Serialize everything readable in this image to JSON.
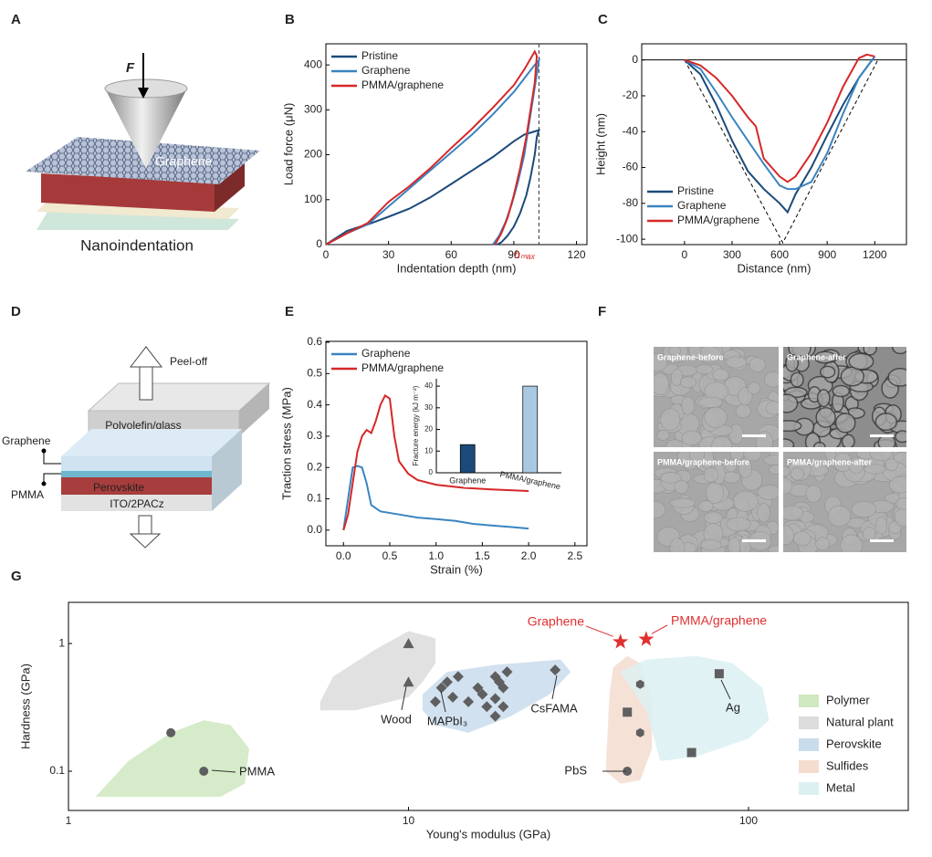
{
  "panel_a": {
    "panel": "A",
    "force": "F",
    "graphene": "Graphene",
    "caption": "Nanoindentation"
  },
  "panel_d": {
    "panel": "D",
    "peel": "Peel-off",
    "top": "Polyolefin/glass",
    "graphene": "Graphene",
    "pmma": "PMMA",
    "perovskite": "Perovskite",
    "ito": "ITO/2PACz"
  },
  "panel_f": {
    "panel": "F",
    "images": [
      "Graphene-before",
      "Graphene-after",
      "PMMA/graphene-before",
      "PMMA/graphene-after"
    ]
  },
  "chart_data": [
    {
      "type": "line",
      "panel": "B",
      "xlabel": "Indentation depth (nm)",
      "ylabel": "Load force (μN)",
      "xlim": [
        0,
        125
      ],
      "xticks": [
        0,
        30,
        60,
        90,
        120
      ],
      "ylim": [
        0,
        447
      ],
      "yticks": [
        0,
        100,
        200,
        300,
        400
      ],
      "vline": 102,
      "annotation": "hₘₐₓ",
      "annotation_color": "#d62728",
      "legend": "upper left",
      "series": [
        {
          "name": "Pristine",
          "color": "#1b4a7a",
          "x": [
            0,
            5,
            10,
            15,
            20,
            30,
            40,
            50,
            60,
            70,
            80,
            90,
            95,
            100,
            102,
            101,
            100,
            98,
            96,
            93,
            90,
            87,
            84,
            82
          ],
          "values": [
            0,
            15,
            30,
            38,
            45,
            62,
            80,
            105,
            135,
            165,
            195,
            230,
            245,
            252,
            255,
            240,
            200,
            150,
            110,
            70,
            40,
            20,
            5,
            0
          ]
        },
        {
          "name": "Graphene",
          "color": "#3a84c0",
          "x": [
            0,
            10,
            20,
            30,
            40,
            50,
            60,
            70,
            80,
            90,
            95,
            100,
            102,
            101,
            99,
            97,
            95,
            92,
            89,
            86,
            83,
            80
          ],
          "values": [
            0,
            25,
            45,
            85,
            125,
            165,
            205,
            245,
            290,
            340,
            370,
            400,
            410,
            380,
            320,
            260,
            200,
            140,
            90,
            50,
            20,
            0
          ]
        },
        {
          "name": "PMMA/graphene",
          "color": "#d62728",
          "x": [
            0,
            10,
            20,
            30,
            40,
            50,
            60,
            70,
            80,
            90,
            95,
            100,
            101,
            100,
            98,
            96,
            93,
            90,
            87,
            84,
            81
          ],
          "values": [
            0,
            25,
            48,
            95,
            130,
            170,
            215,
            258,
            305,
            355,
            390,
            430,
            420,
            360,
            300,
            240,
            170,
            110,
            60,
            25,
            0
          ]
        }
      ]
    },
    {
      "type": "line",
      "panel": "C",
      "xlabel": "Distance (nm)",
      "ylabel": "Height (nm)",
      "xlim": [
        -270,
        1400
      ],
      "xticks": [
        0,
        300,
        600,
        900,
        1200
      ],
      "ylim": [
        -103,
        9
      ],
      "yticks": [
        0,
        -20,
        -40,
        -60,
        -80,
        -100
      ],
      "hline": 0,
      "guide": {
        "x": [
          0,
          620,
          1220
        ],
        "values": [
          0,
          -102,
          0
        ]
      },
      "legend": "lower left",
      "series": [
        {
          "name": "Pristine",
          "color": "#1b4a7a",
          "x": [
            0,
            100,
            200,
            300,
            400,
            500,
            600,
            650,
            700,
            800,
            900,
            1000,
            1100,
            1200
          ],
          "values": [
            0,
            -8,
            -25,
            -45,
            -62,
            -72,
            -80,
            -85,
            -75,
            -60,
            -42,
            -25,
            -10,
            2
          ]
        },
        {
          "name": "Graphene",
          "color": "#3a84c0",
          "x": [
            0,
            100,
            200,
            300,
            400,
            500,
            600,
            650,
            700,
            800,
            900,
            1000,
            1100,
            1200
          ],
          "values": [
            0,
            -5,
            -18,
            -32,
            -45,
            -58,
            -70,
            -72,
            -72,
            -68,
            -52,
            -30,
            -10,
            2
          ]
        },
        {
          "name": "PMMA/graphene",
          "color": "#d62728",
          "x": [
            0,
            100,
            200,
            300,
            400,
            450,
            500,
            600,
            650,
            700,
            800,
            900,
            1000,
            1100,
            1150,
            1200
          ],
          "values": [
            0,
            -3,
            -10,
            -20,
            -32,
            -37,
            -55,
            -65,
            -68,
            -65,
            -52,
            -35,
            -15,
            1,
            3,
            2
          ]
        }
      ]
    },
    {
      "type": "line",
      "panel": "E",
      "xlabel": "Strain (%)",
      "ylabel": "Traction stress (MPa)",
      "xlim": [
        -0.19,
        2.63
      ],
      "xticks": [
        {
          "value": 0,
          "label": "0.0"
        },
        0.5,
        {
          "value": 1,
          "label": "1.0"
        },
        1.5,
        {
          "value": 2,
          "label": "2.0"
        },
        2.5
      ],
      "ylim": [
        -0.05,
        0.603
      ],
      "yticks": [
        {
          "value": 0,
          "label": "0.0"
        },
        0.1,
        0.2,
        0.3,
        0.4,
        0.5,
        0.6
      ],
      "legend": "upper left",
      "series": [
        {
          "name": "Graphene",
          "color": "#3a84c0",
          "x": [
            0,
            0.05,
            0.1,
            0.15,
            0.2,
            0.25,
            0.3,
            0.4,
            0.6,
            0.8,
            1.0,
            1.2,
            1.4,
            1.6,
            1.8,
            2.0
          ],
          "values": [
            0,
            0.1,
            0.2,
            0.205,
            0.2,
            0.15,
            0.08,
            0.06,
            0.05,
            0.04,
            0.035,
            0.03,
            0.02,
            0.015,
            0.01,
            0.005
          ]
        },
        {
          "name": "PMMA/graphene",
          "color": "#d62728",
          "x": [
            0,
            0.05,
            0.1,
            0.15,
            0.2,
            0.25,
            0.3,
            0.35,
            0.4,
            0.45,
            0.5,
            0.55,
            0.6,
            0.7,
            0.8,
            1.0,
            1.3,
            1.6,
            2.0
          ],
          "values": [
            0,
            0.05,
            0.15,
            0.25,
            0.3,
            0.32,
            0.31,
            0.35,
            0.4,
            0.43,
            0.42,
            0.3,
            0.22,
            0.18,
            0.16,
            0.145,
            0.135,
            0.13,
            0.125
          ]
        }
      ]
    },
    {
      "type": "bar",
      "ylabel": "Fracture energy (kJ m⁻²)",
      "categories": [
        "Graphene",
        "PMMA/graphene"
      ],
      "values": [
        13,
        40
      ],
      "colors": [
        "#1b4a7a",
        "#a9c9e2"
      ],
      "ylim": [
        0,
        43.4
      ],
      "yticks": [
        0,
        10,
        20,
        30,
        40
      ]
    },
    {
      "type": "scatter",
      "panel": "G",
      "xlabel": "Young's modulus (GPa)",
      "ylabel": "Hardness (GPa)",
      "xlog": true,
      "ylog": true,
      "xlim": [
        1,
        295
      ],
      "xticks": [
        1,
        10,
        100
      ],
      "ylim": [
        0.0493,
        2.1
      ],
      "yticks": [
        0.1,
        1
      ],
      "legend": "right",
      "series": [
        {
          "name": "Polymer",
          "color": "#cfe8bf",
          "marker": "circle",
          "x": [
            2,
            2.5
          ],
          "values": [
            0.2,
            0.1
          ],
          "region_x": [
            1.2,
            1.5,
            2,
            2.5,
            3,
            3.4,
            3.3,
            2.8
          ],
          "region_y": [
            0.063,
            0.12,
            0.2,
            0.25,
            0.23,
            0.15,
            0.08,
            0.063
          ]
        },
        {
          "name": "Natural plant",
          "color": "#dcdcdc",
          "marker": "triangle",
          "x": [
            10,
            10
          ],
          "values": [
            1.0,
            0.5
          ],
          "region_x": [
            5.5,
            6,
            8,
            10,
            12,
            12,
            11,
            10,
            7,
            5.5
          ],
          "region_y": [
            0.35,
            0.55,
            0.9,
            1.25,
            1.1,
            0.7,
            0.5,
            0.38,
            0.3,
            0.3
          ]
        },
        {
          "name": "Perovskite",
          "color": "#c9dcec",
          "marker": "diamond",
          "x": [
            12,
            12.5,
            13,
            14,
            13.5,
            15,
            16,
            16.5,
            17,
            18,
            18.5,
            19,
            19.5,
            18,
            19,
            18,
            27
          ],
          "values": [
            0.35,
            0.45,
            0.5,
            0.55,
            0.38,
            0.35,
            0.45,
            0.4,
            0.32,
            0.55,
            0.5,
            0.45,
            0.6,
            0.37,
            0.32,
            0.27,
            0.62
          ],
          "region_x": [
            11,
            13,
            18,
            28,
            30,
            26,
            20,
            15,
            12,
            11
          ],
          "region_y": [
            0.4,
            0.6,
            0.68,
            0.75,
            0.6,
            0.4,
            0.27,
            0.2,
            0.23,
            0.3
          ]
        },
        {
          "name": "Sulfides",
          "color": "#f4dccf",
          "marker": [
            "circle",
            "hexagon",
            "hexagon"
          ],
          "x": [
            44,
            48,
            48
          ],
          "values": [
            0.1,
            0.48,
            0.2
          ],
          "region_x": [
            38,
            39,
            40,
            44,
            48,
            52,
            52,
            48,
            42
          ],
          "region_y": [
            0.1,
            0.4,
            0.65,
            0.8,
            0.7,
            0.35,
            0.15,
            0.085,
            0.08
          ]
        },
        {
          "name": "Metal",
          "color": "#dcf0f2",
          "marker": "square",
          "x": [
            44,
            68,
            82
          ],
          "values": [
            0.29,
            0.14,
            0.58
          ],
          "region_x": [
            42,
            50,
            70,
            90,
            110,
            115,
            100,
            70,
            55,
            50
          ],
          "region_y": [
            0.6,
            0.75,
            0.8,
            0.7,
            0.45,
            0.25,
            0.18,
            0.13,
            0.12,
            0.3
          ]
        }
      ],
      "highlights": {
        "color": "#e03030",
        "names": [
          "Graphene",
          "PMMA/graphene"
        ],
        "x": [
          42,
          50
        ],
        "values": [
          1.03,
          1.08
        ]
      },
      "point_labels": [
        "PMMA",
        "Wood",
        "MAPbI₃",
        "CsFAMA",
        "PbS",
        "Ag"
      ]
    }
  ]
}
